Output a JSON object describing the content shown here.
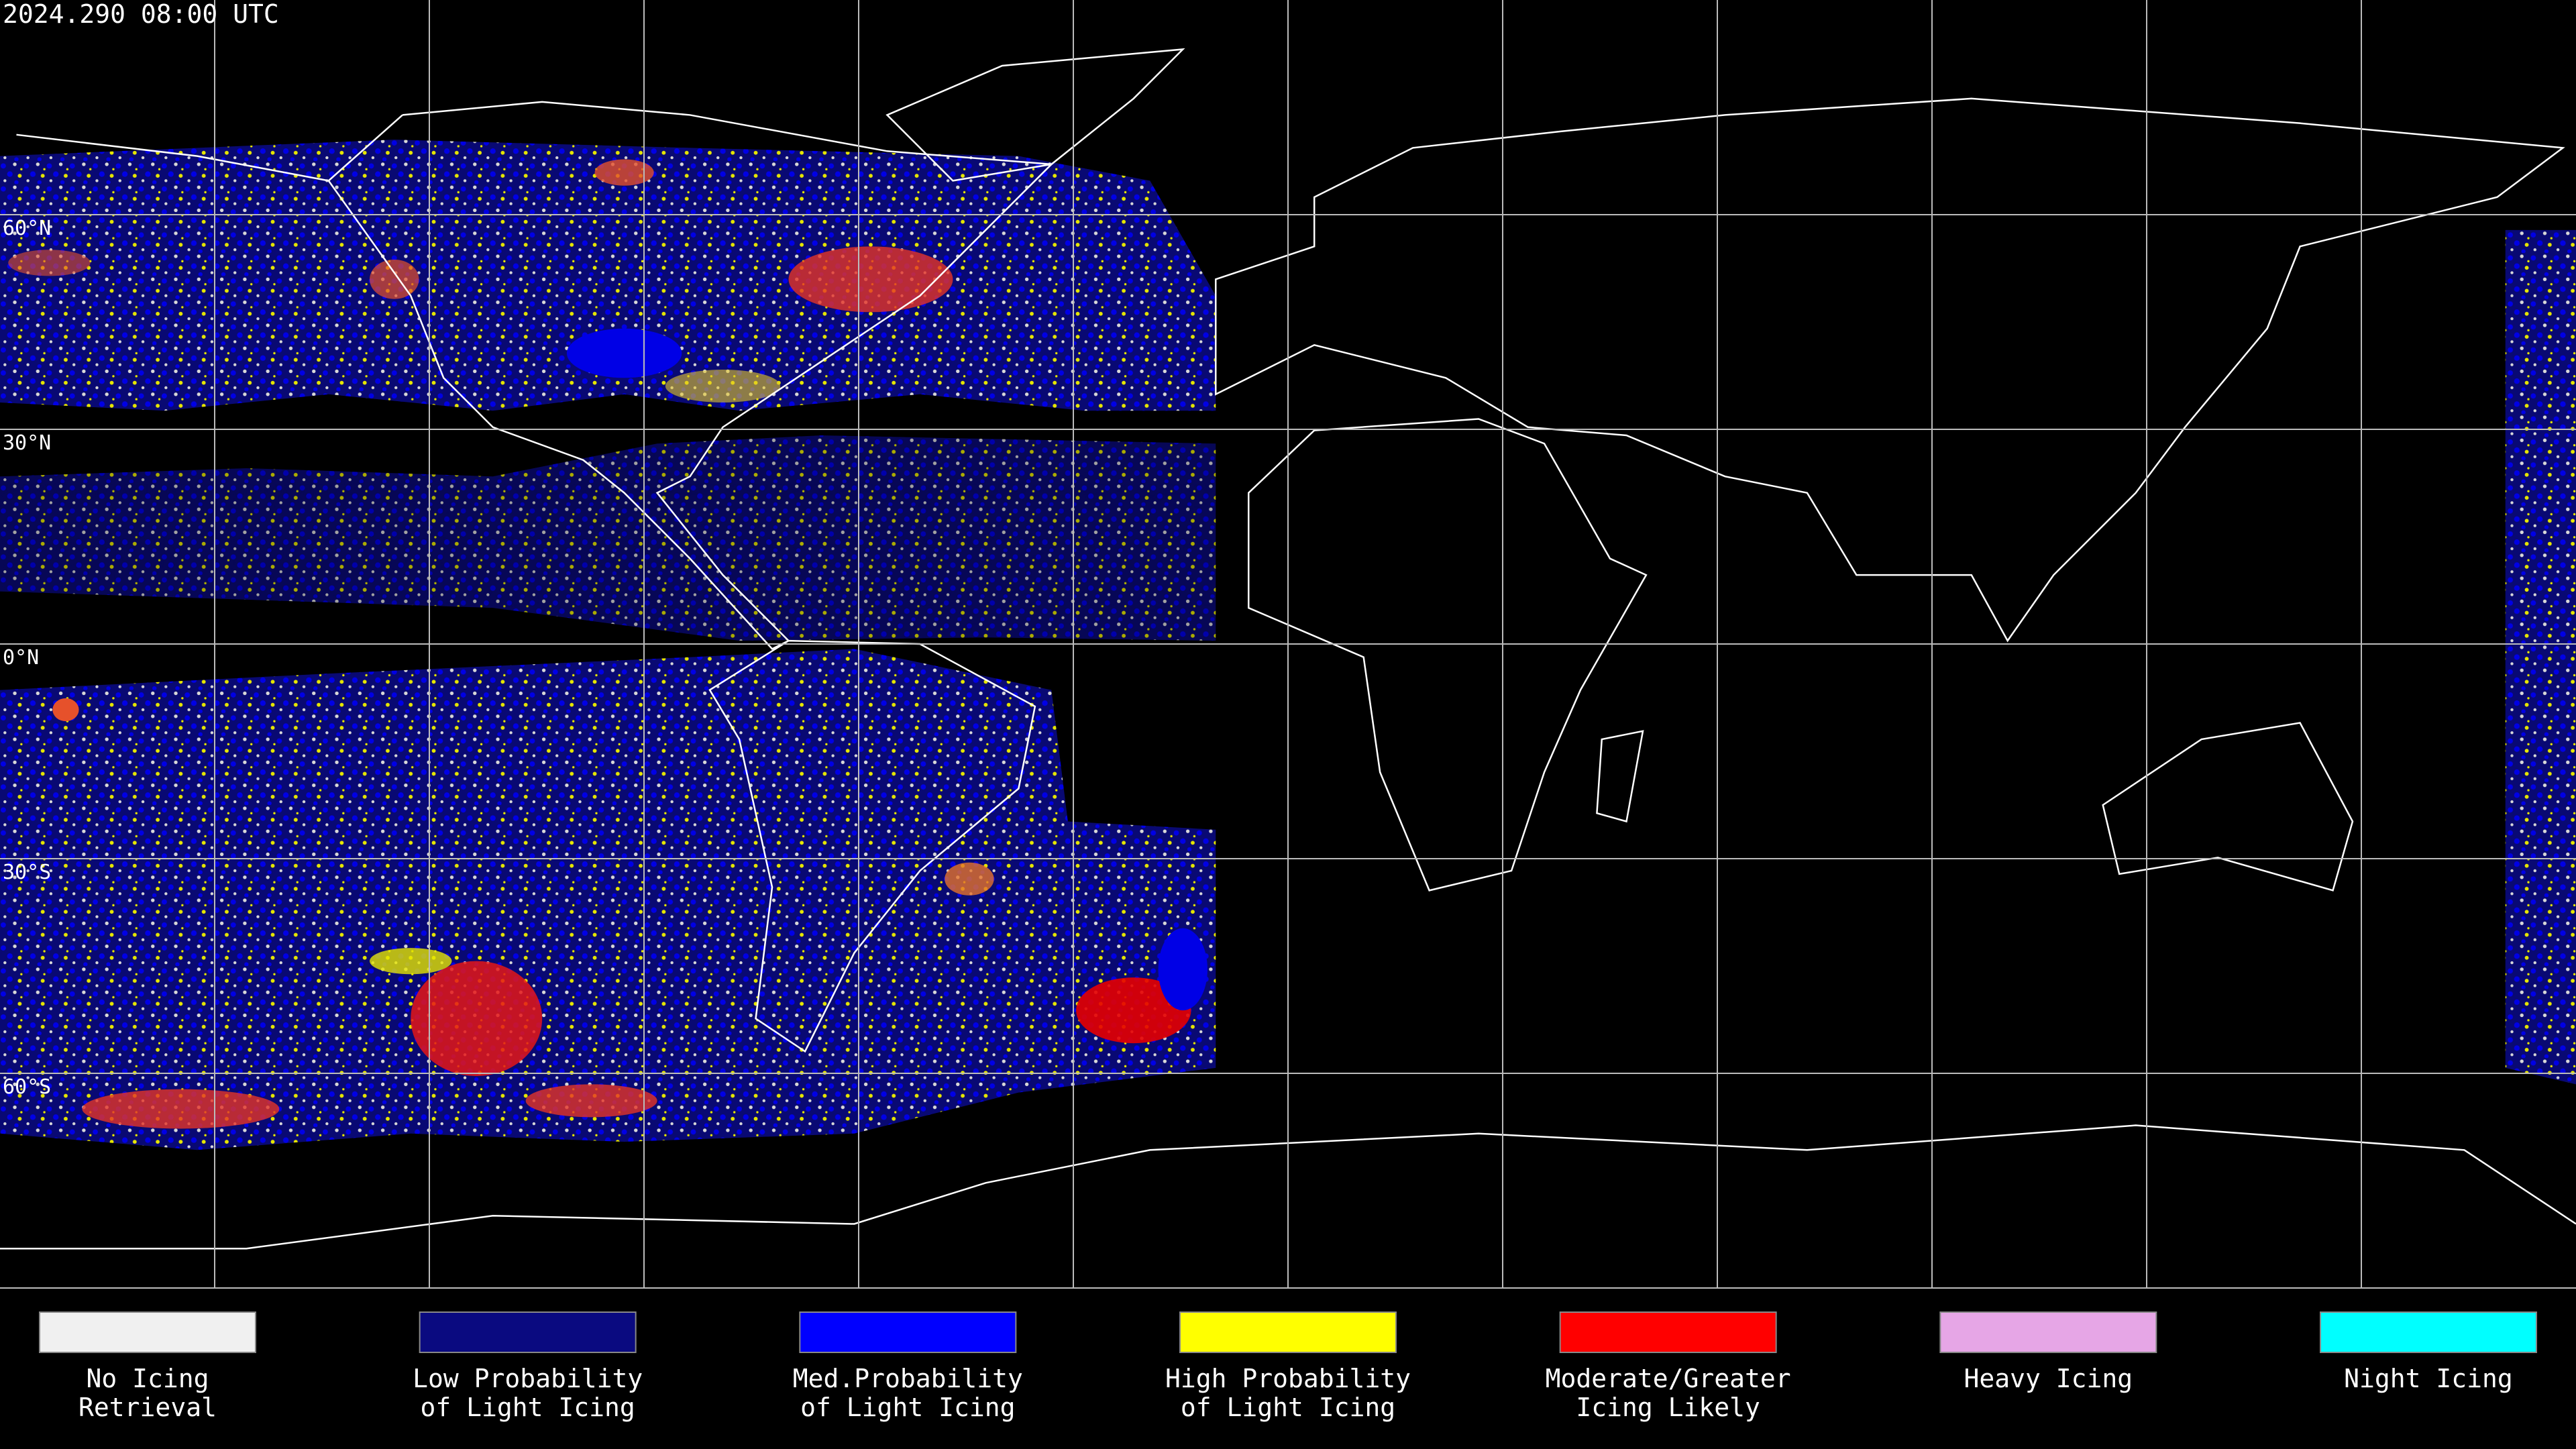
{
  "timestamp": "2024.290 08:00 UTC",
  "latitude_labels": [
    "60°N",
    "30°N",
    "0°N",
    "30°S",
    "60°S"
  ],
  "legend": [
    {
      "color": "#f0f0f0",
      "label": [
        "No Icing",
        "Retrieval"
      ]
    },
    {
      "color": "#0a0a80",
      "label": [
        "Low Probability",
        "of Light Icing"
      ]
    },
    {
      "color": "#0000ff",
      "label": [
        "Med.Probability",
        "of Light Icing"
      ]
    },
    {
      "color": "#ffff00",
      "label": [
        "High Probability",
        "of Light Icing"
      ]
    },
    {
      "color": "#ff0000",
      "label": [
        "Moderate/Greater",
        "Icing Likely"
      ]
    },
    {
      "color": "#e6a6e6",
      "label": [
        "Heavy Icing"
      ]
    },
    {
      "color": "#00ffff",
      "label": [
        "Night Icing"
      ]
    }
  ]
}
